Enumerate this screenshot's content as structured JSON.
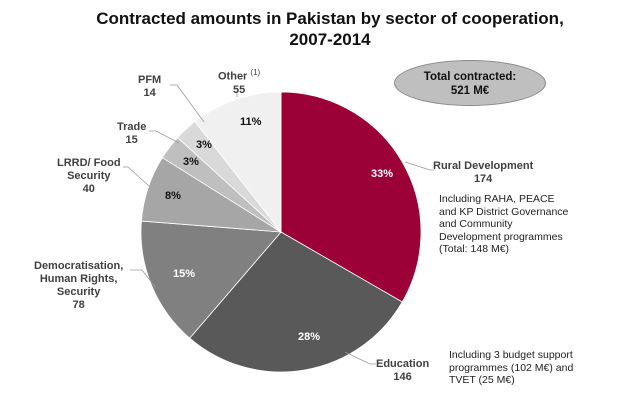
{
  "chart_data": {
    "type": "pie",
    "title": "Contracted amounts in Pakistan by sector of cooperation, 2007-2014",
    "unit": "M€",
    "start": "12 o'clock, clockwise",
    "slices": [
      {
        "label": "Rural Development",
        "value": 174,
        "pct": "33%",
        "color": "#9b0037"
      },
      {
        "label": "Education",
        "value": 146,
        "pct": "28%",
        "color": "#595959"
      },
      {
        "label": "Democratisation, Human Rights, Security",
        "value": 78,
        "pct": "15%",
        "color": "#808080"
      },
      {
        "label": "LRRD/ Food Security",
        "value": 40,
        "pct": "8%",
        "color": "#a6a6a6"
      },
      {
        "label": "Trade",
        "value": 15,
        "pct": "3%",
        "color": "#bfbfbf"
      },
      {
        "label": "PFM",
        "value": 14,
        "pct": "3%",
        "color": "#d9d9d9"
      },
      {
        "label": "Other",
        "value": 55,
        "pct": "11%",
        "color": "#f0f0f0"
      }
    ],
    "other_footnote": "(1)",
    "total_label": "Total contracted:",
    "total_value": "521 M€",
    "notes": {
      "rural": [
        "Including RAHA, PEACE",
        "and KP District Governance",
        "and Community",
        "Development programmes",
        "(Total: 148 M€)"
      ],
      "education": [
        "Including 3 budget support",
        "programmes (102 M€) and",
        "TVET (25 M€)"
      ]
    },
    "label_lines": {
      "democratisation": [
        "Democratisation,",
        "Human Rights,",
        "Security"
      ],
      "lrrd": [
        "LRRD/ Food",
        "Security"
      ]
    }
  }
}
